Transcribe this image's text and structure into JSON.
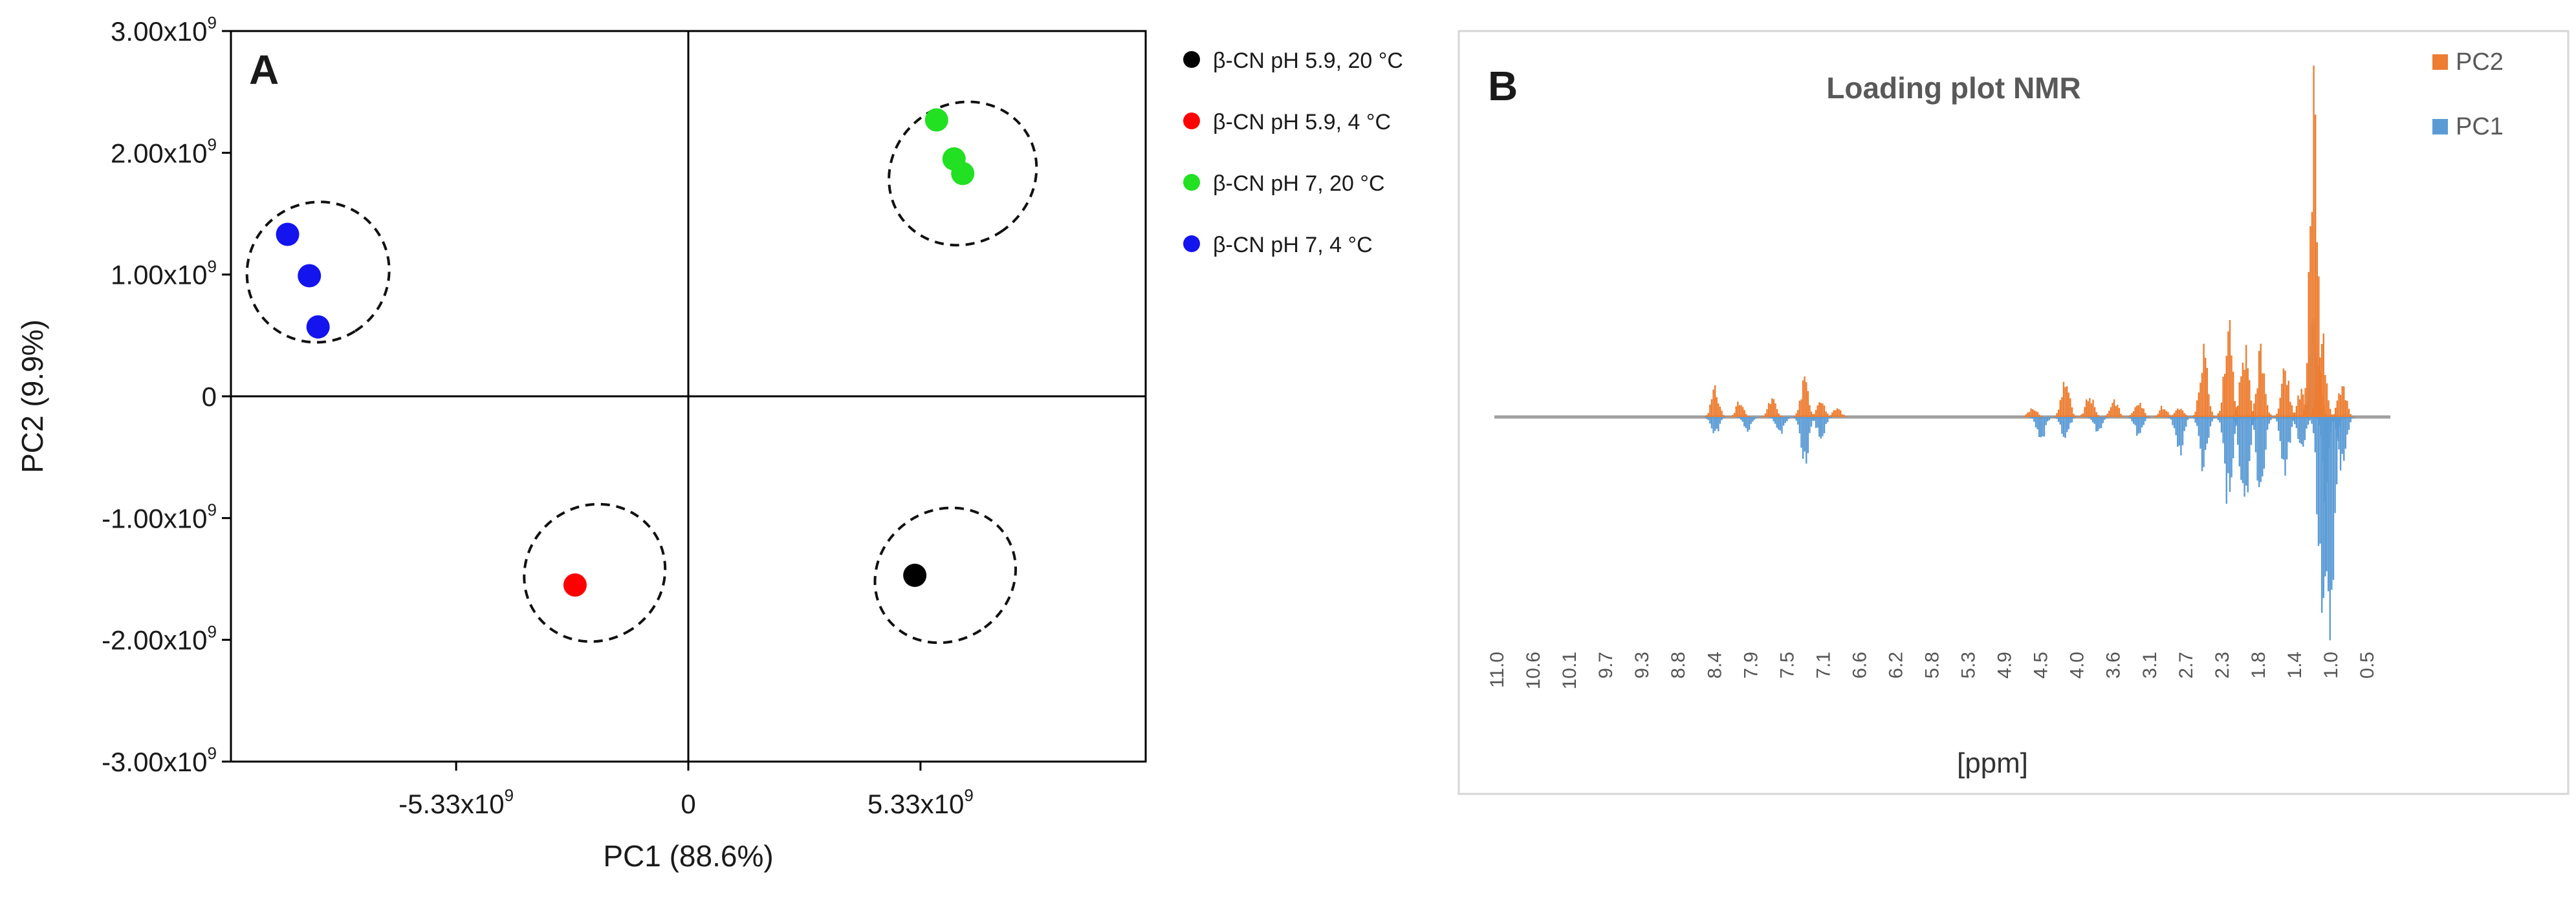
{
  "chart_data": [
    {
      "type": "scatter",
      "panel_label": "A",
      "xlabel": "PC1 (88.6%)",
      "ylabel": "PC2 (9.9%)",
      "xlim": [
        -10500000000.0,
        10500000000.0
      ],
      "ylim": [
        -3000000000.0,
        3000000000.0
      ],
      "x_ticks": [
        {
          "value": -5330000000.0,
          "label": "-5.33x10",
          "exp": "9"
        },
        {
          "value": 0,
          "label": "0",
          "exp": ""
        },
        {
          "value": 5330000000.0,
          "label": "5.33x10",
          "exp": "9"
        }
      ],
      "y_ticks": [
        {
          "value": 3000000000.0,
          "label": "3.00x10",
          "exp": "9"
        },
        {
          "value": 2000000000.0,
          "label": "2.00x10",
          "exp": "9"
        },
        {
          "value": 1000000000.0,
          "label": "1.00x10",
          "exp": "9"
        },
        {
          "value": 0,
          "label": "0",
          "exp": ""
        },
        {
          "value": -1000000000.0,
          "label": "-1.00x10",
          "exp": "9"
        },
        {
          "value": -2000000000.0,
          "label": "-2.00x10",
          "exp": "9"
        },
        {
          "value": -3000000000.0,
          "label": "-3.00x10",
          "exp": "9"
        }
      ],
      "series": [
        {
          "name": "β-CN pH 5.9, 20 °C",
          "color": "#000000",
          "points": [
            {
              "x": 5200000000.0,
              "y": -1470000000.0
            }
          ]
        },
        {
          "name": "β-CN pH 5.9, 4 °C",
          "color": "#ff0000",
          "points": [
            {
              "x": -2600000000.0,
              "y": -1550000000.0
            }
          ]
        },
        {
          "name": "β-CN pH 7, 20 °C",
          "color": "#22e022",
          "points": [
            {
              "x": 5700000000.0,
              "y": 2270000000.0
            },
            {
              "x": 6100000000.0,
              "y": 1950000000.0
            },
            {
              "x": 6300000000.0,
              "y": 1830000000.0
            }
          ]
        },
        {
          "name": "β-CN pH 7, 4 °C",
          "color": "#1414ee",
          "points": [
            {
              "x": -9200000000.0,
              "y": 1330000000.0
            },
            {
              "x": -8700000000.0,
              "y": 990000000.0
            },
            {
              "x": -8500000000.0,
              "y": 570000000.0
            }
          ]
        }
      ],
      "confidence_ellipses": [
        {
          "group": "β-CN pH 5.9, 20 °C",
          "cx": 5900000000.0,
          "cy": -1470000000.0,
          "rx": 1500000000.0,
          "ry": 1080000000.0,
          "angle_deg": 57
        },
        {
          "group": "β-CN pH 5.9, 4 °C",
          "cx": -2150000000.0,
          "cy": -1450000000.0,
          "rx": 1550000000.0,
          "ry": 1070000000.0,
          "angle_deg": 57
        },
        {
          "group": "β-CN pH 7, 20 °C",
          "cx": 6300000000.0,
          "cy": 1830000000.0,
          "rx": 1600000000.0,
          "ry": 1130000000.0,
          "angle_deg": 55
        },
        {
          "group": "β-CN pH 7, 4 °C",
          "cx": -8500000000.0,
          "cy": 1020000000.0,
          "rx": 1600000000.0,
          "ry": 1070000000.0,
          "angle_deg": 58
        }
      ]
    },
    {
      "type": "bar",
      "panel_label": "B",
      "title": "Loading plot NMR",
      "xlabel": "[ppm]",
      "x_reversed": true,
      "xlim": [
        11.0,
        0.0
      ],
      "ylim": [
        -1.6,
        1.8
      ],
      "x_tick_labels": [
        "11.0",
        "10.6",
        "10.1",
        "9.7",
        "9.3",
        "8.8",
        "8.4",
        "7.9",
        "7.5",
        "7.1",
        "6.6",
        "6.2",
        "5.8",
        "5.3",
        "4.9",
        "4.5",
        "4.0",
        "3.6",
        "3.1",
        "2.7",
        "2.3",
        "1.8",
        "1.4",
        "1.0",
        "0.5"
      ],
      "series": [
        {
          "name": "PC2",
          "color": "#ed7d31",
          "peaks": [
            {
              "ppm": 8.3,
              "value": 0.15
            },
            {
              "ppm": 8.0,
              "value": 0.08
            },
            {
              "ppm": 7.6,
              "value": 0.1
            },
            {
              "ppm": 7.2,
              "value": 0.2
            },
            {
              "ppm": 7.0,
              "value": 0.08
            },
            {
              "ppm": 6.8,
              "value": 0.05
            },
            {
              "ppm": 4.4,
              "value": 0.06
            },
            {
              "ppm": 4.0,
              "value": 0.22
            },
            {
              "ppm": 3.7,
              "value": 0.12
            },
            {
              "ppm": 3.4,
              "value": 0.1
            },
            {
              "ppm": 3.1,
              "value": 0.1
            },
            {
              "ppm": 2.8,
              "value": 0.06
            },
            {
              "ppm": 2.6,
              "value": 0.05
            },
            {
              "ppm": 2.3,
              "value": 0.35
            },
            {
              "ppm": 2.0,
              "value": 0.5
            },
            {
              "ppm": 1.8,
              "value": 0.4
            },
            {
              "ppm": 1.6,
              "value": 0.35
            },
            {
              "ppm": 1.3,
              "value": 0.25
            },
            {
              "ppm": 1.1,
              "value": 0.15
            },
            {
              "ppm": 0.95,
              "value": 1.7
            },
            {
              "ppm": 0.85,
              "value": 0.45
            },
            {
              "ppm": 0.6,
              "value": 0.2
            }
          ]
        },
        {
          "name": "PC1",
          "color": "#5b9bd5",
          "peaks": [
            {
              "ppm": 8.3,
              "value": -0.1
            },
            {
              "ppm": 7.9,
              "value": -0.08
            },
            {
              "ppm": 7.5,
              "value": -0.1
            },
            {
              "ppm": 7.2,
              "value": -0.25
            },
            {
              "ppm": 7.0,
              "value": -0.12
            },
            {
              "ppm": 4.3,
              "value": -0.15
            },
            {
              "ppm": 4.0,
              "value": -0.12
            },
            {
              "ppm": 3.6,
              "value": -0.08
            },
            {
              "ppm": 3.1,
              "value": -0.1
            },
            {
              "ppm": 2.6,
              "value": -0.2
            },
            {
              "ppm": 2.3,
              "value": -0.3
            },
            {
              "ppm": 2.0,
              "value": -0.45
            },
            {
              "ppm": 1.8,
              "value": -0.6
            },
            {
              "ppm": 1.6,
              "value": -0.45
            },
            {
              "ppm": 1.3,
              "value": -0.3
            },
            {
              "ppm": 1.1,
              "value": -0.2
            },
            {
              "ppm": 0.95,
              "value": 0.5
            },
            {
              "ppm": 0.85,
              "value": -1.1
            },
            {
              "ppm": 0.75,
              "value": -1.55
            },
            {
              "ppm": 0.6,
              "value": -0.3
            }
          ]
        }
      ]
    }
  ]
}
